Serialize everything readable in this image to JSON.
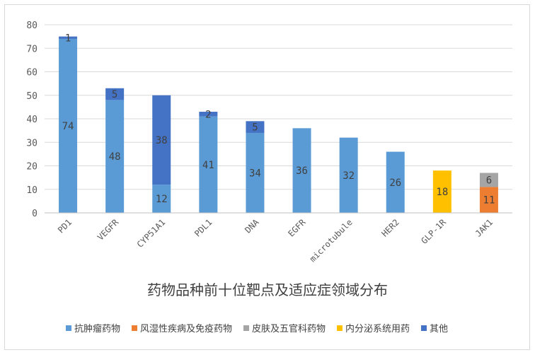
{
  "chart_data": {
    "type": "bar",
    "stacked": true,
    "title": "药物品种前十位靶点及适应症领域分布",
    "categories": [
      "PD1",
      "VEGFR",
      "CYP51A1",
      "PDL1",
      "DNA",
      "EGFR",
      "microtubule",
      "HER2",
      "GLP-1R",
      "JAK1"
    ],
    "ylim": [
      0,
      80
    ],
    "yticks": [
      0,
      10,
      20,
      30,
      40,
      50,
      60,
      70,
      80
    ],
    "grid": true,
    "legend_position": "bottom",
    "series": [
      {
        "name": "抗肿瘤药物",
        "color": "#5b9bd5",
        "values": [
          74,
          48,
          12,
          41,
          34,
          36,
          32,
          26,
          0,
          0
        ]
      },
      {
        "name": "风湿性疾病及免疫药物",
        "color": "#ed7d31",
        "values": [
          0,
          0,
          0,
          0,
          0,
          0,
          0,
          0,
          0,
          11
        ]
      },
      {
        "name": "皮肤及五官科药物",
        "color": "#a5a5a5",
        "values": [
          0,
          0,
          0,
          0,
          0,
          0,
          0,
          0,
          0,
          6
        ]
      },
      {
        "name": "内分泌系统用药",
        "color": "#ffc000",
        "values": [
          0,
          0,
          0,
          0,
          0,
          0,
          0,
          0,
          18,
          0
        ]
      },
      {
        "name": "其他",
        "color": "#4472c4",
        "values": [
          1,
          5,
          38,
          2,
          5,
          0,
          0,
          0,
          0,
          0
        ]
      }
    ]
  }
}
